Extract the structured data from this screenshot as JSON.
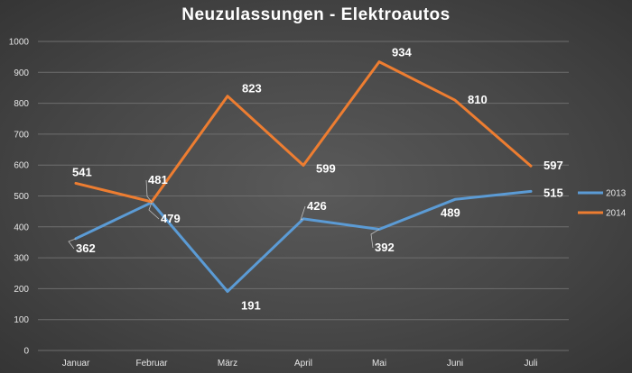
{
  "chart_data": {
    "type": "line",
    "title": "Neuzulassungen - Elektroautos",
    "categories": [
      "Januar",
      "Februar",
      "März",
      "April",
      "Mai",
      "Juni",
      "Juli"
    ],
    "series": [
      {
        "name": "2013",
        "values": [
          362,
          479,
          191,
          426,
          392,
          489,
          515
        ],
        "color": "#5b9bd5"
      },
      {
        "name": "2014",
        "values": [
          541,
          481,
          823,
          599,
          934,
          810,
          597
        ],
        "color": "#ed7d31"
      }
    ],
    "ylim": [
      0,
      1000
    ],
    "yticks": [
      0,
      100,
      200,
      300,
      400,
      500,
      600,
      700,
      800,
      900,
      1000
    ],
    "grid": true,
    "legend_position": "right",
    "xlabel": "",
    "ylabel": ""
  }
}
